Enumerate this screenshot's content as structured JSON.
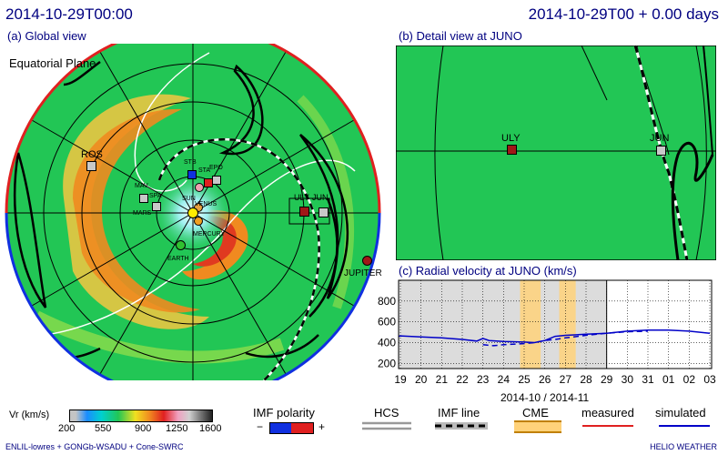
{
  "header": {
    "datetime": "2014-10-29T00:00",
    "datetime_offset": "2014-10-29T00 + 0.00 days"
  },
  "panel_a": {
    "title": "(a) Global view",
    "plane_label": "Equatorial Plane",
    "bodies": [
      {
        "name": "STB",
        "color": "#1030e0"
      },
      {
        "name": "STA",
        "color": "#e02020"
      },
      {
        "name": "SOHO",
        "color": "#f0a0b0"
      },
      {
        "name": "EPO",
        "color": "#c8c8c8"
      },
      {
        "name": "VENUS",
        "color": "#e8a040"
      },
      {
        "name": "SUN",
        "color": "#ffee00"
      },
      {
        "name": "MERCURY",
        "color": "#f0a020"
      },
      {
        "name": "EARTH",
        "color": "#30c030"
      },
      {
        "name": "MAV",
        "color": "#c8c8c8"
      },
      {
        "name": "SPA",
        "color": "#c8c8c8"
      },
      {
        "name": "MARS",
        "color": "#c8c8c8"
      },
      {
        "name": "ROS",
        "color": "#c8c8c8"
      },
      {
        "name": "ULY",
        "color": "#a01818"
      },
      {
        "name": "JUN",
        "color": "#c8c8c8"
      },
      {
        "name": "JUPITER",
        "color": "#a01818"
      }
    ]
  },
  "panel_b": {
    "title": "(b) Detail view at JUNO",
    "markers": [
      {
        "name": "ULY",
        "color": "#a01818"
      },
      {
        "name": "JUN",
        "color": "#c8c8c8"
      }
    ]
  },
  "chart_data": {
    "type": "line",
    "title": "(c) Radial velocity at JUNO (km/s)",
    "xlabel": "2014-10 / 2014-11",
    "x_ticks": [
      "19",
      "20",
      "21",
      "22",
      "23",
      "24",
      "25",
      "26",
      "27",
      "28",
      "29",
      "30",
      "31",
      "01",
      "02",
      "03"
    ],
    "y_ticks": [
      200,
      400,
      600,
      800
    ],
    "ylim": [
      150,
      1000
    ],
    "shaded_past_end_index": 10,
    "cme_bands": [
      [
        5.8,
        6.8
      ],
      [
        7.7,
        8.5
      ]
    ],
    "series": [
      {
        "name": "simulated",
        "style": "solid",
        "color": "#0000c8",
        "values": [
          [
            -1,
            460
          ],
          [
            0,
            465
          ],
          [
            1,
            455
          ],
          [
            2,
            445
          ],
          [
            3,
            430
          ],
          [
            3.7,
            415
          ],
          [
            4,
            440
          ],
          [
            4.3,
            420
          ],
          [
            5,
            410
          ],
          [
            6,
            405
          ],
          [
            6.5,
            400
          ],
          [
            7,
            420
          ],
          [
            7.5,
            460
          ],
          [
            8,
            470
          ],
          [
            9,
            480
          ],
          [
            10,
            490
          ],
          [
            11,
            510
          ],
          [
            12,
            520
          ],
          [
            13,
            520
          ],
          [
            14,
            510
          ],
          [
            15,
            490
          ]
        ]
      },
      {
        "name": "simulated-dashed",
        "style": "dashed",
        "color": "#0000c8",
        "values": [
          [
            4,
            380
          ],
          [
            4.5,
            370
          ],
          [
            5,
            380
          ],
          [
            6,
            390
          ],
          [
            6.5,
            400
          ],
          [
            7,
            420
          ],
          [
            7.5,
            430
          ],
          [
            8,
            445
          ],
          [
            9,
            470
          ],
          [
            10,
            490
          ],
          [
            11,
            505
          ],
          [
            12,
            510
          ]
        ]
      }
    ]
  },
  "colorbar": {
    "label": "Vr (km/s)",
    "ticks": [
      "200",
      "550",
      "900",
      "1250",
      "1600"
    ]
  },
  "legend": {
    "imf_polarity": "IMF polarity",
    "minus": "−",
    "plus": "+",
    "hcs": "HCS",
    "imf_line": "IMF line",
    "cme": "CME",
    "measured": "measured",
    "simulated": "simulated",
    "colors": {
      "measured": "#e02020",
      "simulated": "#0000c8",
      "cme": "#ffd27a",
      "minus": "#1030e0",
      "plus": "#e02020"
    }
  },
  "footer": {
    "left": "ENLIL-lowres + GONGb-WSADU + Cone-SWRC",
    "right": "HELIO WEATHER"
  }
}
